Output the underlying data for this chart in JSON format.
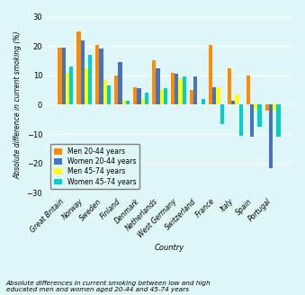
{
  "countries": [
    "Great Britain",
    "Norway",
    "Sweden",
    "Finland",
    "Denmark",
    "Netherlands",
    "West Germany",
    "Switzerland",
    "France",
    "Italy",
    "Spain",
    "Portugal"
  ],
  "men_20_44": [
    19.5,
    25.0,
    20.5,
    10.0,
    6.0,
    15.0,
    11.0,
    5.0,
    20.5,
    12.5,
    10.0,
    -2.0
  ],
  "women_20_44": [
    19.5,
    22.0,
    19.0,
    14.5,
    5.5,
    12.5,
    10.5,
    9.5,
    6.0,
    1.5,
    -11.0,
    -21.5
  ],
  "men_45_74": [
    11.0,
    12.5,
    8.5,
    1.5,
    2.0,
    5.0,
    9.0,
    0.0,
    6.0,
    3.5,
    -1.5,
    -2.0
  ],
  "women_45_74": [
    13.0,
    17.0,
    6.5,
    1.5,
    4.0,
    5.5,
    9.5,
    2.0,
    -6.5,
    -10.5,
    -7.5,
    -11.0
  ],
  "colors": {
    "men_20_44": "#FF8C00",
    "women_20_44": "#4472C4",
    "men_45_74": "#FFFF00",
    "women_45_74": "#00CED1"
  },
  "ylabel": "Absolute difference in current smoking (%)",
  "xlabel": "Country",
  "ylim": [
    -30,
    30
  ],
  "yticks": [
    -30,
    -20,
    -10,
    0,
    10,
    20,
    30
  ],
  "title": "",
  "caption": "Absolute differences in current smoking between low and high\neducated men and women aged 20-44 and 45-74 years",
  "legend_labels": [
    "Men 20-44 years",
    "Women 20-44 years",
    "Men 45-74 years",
    "Women 45-74 years"
  ],
  "background_color": "#E0F7FA"
}
